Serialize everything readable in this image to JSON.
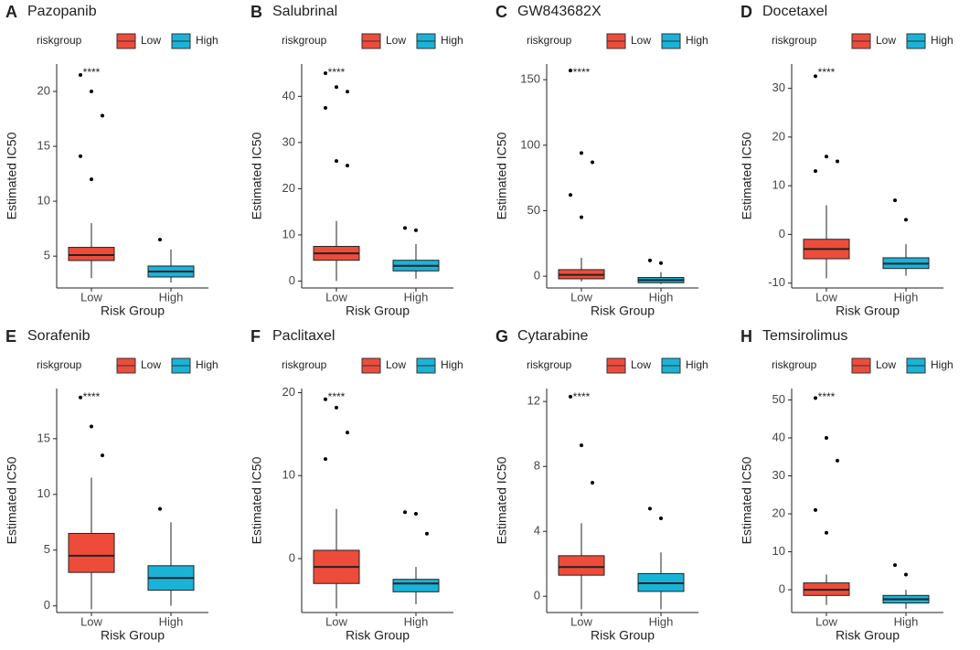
{
  "chart_data": [
    {
      "type": "box",
      "label": "A",
      "title": "Pazopanib",
      "legend_title": "riskgroup",
      "categories": [
        "Low",
        "High"
      ],
      "colors": [
        "#ee4c3b",
        "#1ab3d8"
      ],
      "xlabel": "Risk Group",
      "ylabel": "Estimated IC50",
      "annotation": "****",
      "ylim": [
        2.1,
        22.5
      ],
      "yticks": [
        5,
        10,
        15,
        20
      ],
      "boxes": [
        {
          "min": 3.0,
          "q1": 4.6,
          "median": 5.1,
          "q3": 5.8,
          "max": 8.0,
          "outliers": [
            21.5,
            20,
            17.8,
            14.1,
            12
          ]
        },
        {
          "min": 2.6,
          "q1": 3.1,
          "median": 3.6,
          "q3": 4.1,
          "max": 5.6,
          "outliers": [
            6.5
          ]
        }
      ]
    },
    {
      "type": "box",
      "label": "B",
      "title": "Salubrinal",
      "legend_title": "riskgroup",
      "categories": [
        "Low",
        "High"
      ],
      "colors": [
        "#ee4c3b",
        "#1ab3d8"
      ],
      "xlabel": "Risk Group",
      "ylabel": "Estimated IC50",
      "annotation": "****",
      "ylim": [
        -1.5,
        47
      ],
      "yticks": [
        0,
        10,
        20,
        30,
        40
      ],
      "boxes": [
        {
          "min": 0,
          "q1": 4.5,
          "median": 6,
          "q3": 7.5,
          "max": 13,
          "outliers": [
            45,
            42,
            41,
            37.5,
            26,
            25
          ]
        },
        {
          "min": 0.5,
          "q1": 2.2,
          "median": 3.3,
          "q3": 4.5,
          "max": 8,
          "outliers": [
            11.5,
            11
          ]
        }
      ]
    },
    {
      "type": "box",
      "label": "C",
      "title": "GW843682X",
      "legend_title": "riskgroup",
      "categories": [
        "Low",
        "High"
      ],
      "colors": [
        "#ee4c3b",
        "#1ab3d8"
      ],
      "xlabel": "Risk Group",
      "ylabel": "Estimated IC50",
      "annotation": "****",
      "ylim": [
        -9,
        162
      ],
      "yticks": [
        0,
        50,
        100,
        150
      ],
      "boxes": [
        {
          "min": -4,
          "q1": -2,
          "median": 1,
          "q3": 5,
          "max": 14,
          "outliers": [
            157,
            94,
            87,
            62,
            45
          ]
        },
        {
          "min": -6,
          "q1": -5,
          "median": -3,
          "q3": -1,
          "max": 3,
          "outliers": [
            12,
            10
          ]
        }
      ]
    },
    {
      "type": "box",
      "label": "D",
      "title": "Docetaxel",
      "legend_title": "riskgroup",
      "categories": [
        "Low",
        "High"
      ],
      "colors": [
        "#ee4c3b",
        "#1ab3d8"
      ],
      "xlabel": "Risk Group",
      "ylabel": "Estimated IC50",
      "annotation": "****",
      "ylim": [
        -11,
        35
      ],
      "yticks": [
        -10,
        0,
        10,
        20,
        30
      ],
      "boxes": [
        {
          "min": -9,
          "q1": -5,
          "median": -3,
          "q3": -1,
          "max": 6,
          "outliers": [
            32.5,
            16,
            15,
            13
          ]
        },
        {
          "min": -8.5,
          "q1": -7,
          "median": -6,
          "q3": -4.8,
          "max": -2,
          "outliers": [
            7,
            3
          ]
        }
      ]
    },
    {
      "type": "box",
      "label": "E",
      "title": "Sorafenib",
      "legend_title": "riskgroup",
      "categories": [
        "Low",
        "High"
      ],
      "colors": [
        "#ee4c3b",
        "#1ab3d8"
      ],
      "xlabel": "Risk Group",
      "ylabel": "Estimated IC50",
      "annotation": "****",
      "ylim": [
        -0.6,
        19.5
      ],
      "yticks": [
        0,
        5,
        10,
        15
      ],
      "boxes": [
        {
          "min": -0.3,
          "q1": 3,
          "median": 4.5,
          "q3": 6.5,
          "max": 11.5,
          "outliers": [
            18.7,
            16.1,
            13.5
          ]
        },
        {
          "min": 0,
          "q1": 1.4,
          "median": 2.5,
          "q3": 3.6,
          "max": 7.5,
          "outliers": [
            8.7
          ]
        }
      ]
    },
    {
      "type": "box",
      "label": "F",
      "title": "Paclitaxel",
      "legend_title": "riskgroup",
      "categories": [
        "Low",
        "High"
      ],
      "colors": [
        "#ee4c3b",
        "#1ab3d8"
      ],
      "xlabel": "Risk Group",
      "ylabel": "Estimated IC50",
      "annotation": "****",
      "ylim": [
        -6.5,
        20.5
      ],
      "yticks": [
        0,
        10,
        20
      ],
      "boxes": [
        {
          "min": -6,
          "q1": -3,
          "median": -1,
          "q3": 1,
          "max": 6,
          "outliers": [
            19.2,
            18.2,
            15.2,
            12
          ]
        },
        {
          "min": -5.5,
          "q1": -4,
          "median": -3,
          "q3": -2.5,
          "max": -1,
          "outliers": [
            5.6,
            5.4,
            3
          ]
        }
      ]
    },
    {
      "type": "box",
      "label": "G",
      "title": "Cytarabine",
      "legend_title": "riskgroup",
      "categories": [
        "Low",
        "High"
      ],
      "colors": [
        "#ee4c3b",
        "#1ab3d8"
      ],
      "xlabel": "Risk Group",
      "ylabel": "Estimated IC50",
      "annotation": "****",
      "ylim": [
        -1,
        12.8
      ],
      "yticks": [
        0,
        4,
        8,
        12
      ],
      "boxes": [
        {
          "min": -0.8,
          "q1": 1.3,
          "median": 1.8,
          "q3": 2.5,
          "max": 4.5,
          "outliers": [
            12.3,
            9.3,
            7
          ]
        },
        {
          "min": -0.8,
          "q1": 0.3,
          "median": 0.8,
          "q3": 1.4,
          "max": 2.7,
          "outliers": [
            5.4,
            4.8
          ]
        }
      ]
    },
    {
      "type": "box",
      "label": "H",
      "title": "Temsirolimus",
      "legend_title": "riskgroup",
      "categories": [
        "Low",
        "High"
      ],
      "colors": [
        "#ee4c3b",
        "#1ab3d8"
      ],
      "xlabel": "Risk Group",
      "ylabel": "Estimated IC50",
      "annotation": "****",
      "ylim": [
        -6,
        53
      ],
      "yticks": [
        0,
        10,
        20,
        30,
        40,
        50
      ],
      "boxes": [
        {
          "min": -4,
          "q1": -1.5,
          "median": 0,
          "q3": 1.8,
          "max": 4,
          "outliers": [
            50.5,
            40,
            34,
            21,
            15
          ]
        },
        {
          "min": -5,
          "q1": -3.5,
          "median": -2.5,
          "q3": -1.5,
          "max": 0,
          "outliers": [
            6.5,
            4
          ]
        }
      ]
    }
  ]
}
